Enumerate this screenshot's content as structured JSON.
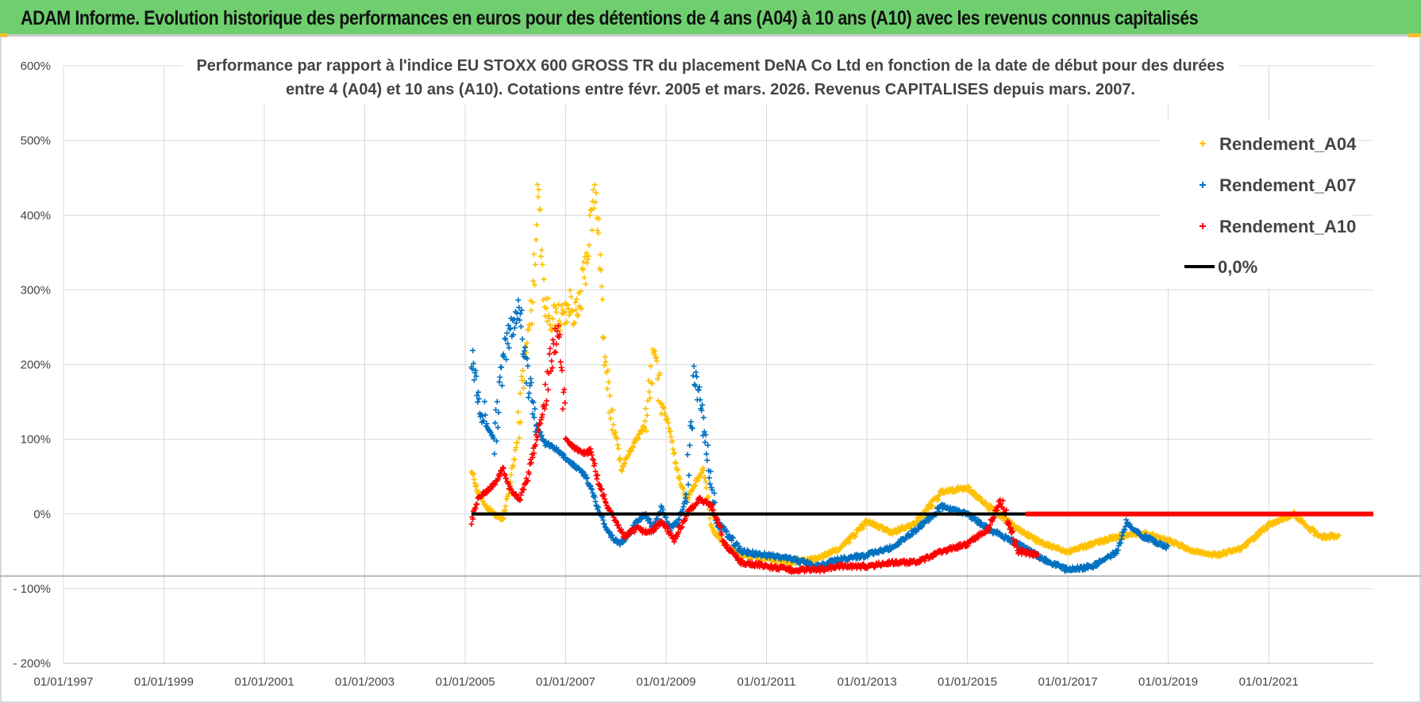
{
  "header": {
    "title": "ADAM Informe. Evolution historique des performances en euros pour des détentions de 4 ans (A04) à 10 ans (A10) avec les revenus connus capitalisés"
  },
  "chart_data": {
    "type": "scatter",
    "title_lines": [
      "Performance par rapport à l'indice EU STOXX 600 GROSS TR  du placement DeNA Co Ltd en fonction de la date de début pour des durées",
      "entre 4 (A04) et 10 ans (A10). Cotations entre févr. 2005 et mars. 2026. Revenus CAPITALISES depuis mars. 2007."
    ],
    "xlabel": "",
    "ylabel": "",
    "x_ticks": [
      "01/01/1997",
      "01/01/1999",
      "01/01/2001",
      "01/01/2003",
      "01/01/2005",
      "01/01/2007",
      "01/01/2009",
      "01/01/2011",
      "01/01/2013",
      "01/01/2015",
      "01/01/2017",
      "01/01/2019",
      "01/01/2021"
    ],
    "xlim": [
      "1997-01-01",
      "2023-02-01"
    ],
    "y_ticks": [
      "600%",
      "500%",
      "400%",
      "300%",
      "200%",
      "100%",
      "0%",
      "- 100%",
      "- 200%"
    ],
    "ylim": [
      -200,
      600
    ],
    "grid": true,
    "legend_position": "top-right",
    "series": [
      {
        "name": "Rendement_A04",
        "color": "#ffc000",
        "marker": "+",
        "points": [
          [
            "2005-02-15",
            60
          ],
          [
            "2005-04-01",
            30
          ],
          [
            "2005-06-01",
            10
          ],
          [
            "2005-08-01",
            0
          ],
          [
            "2005-10-01",
            -10
          ],
          [
            "2005-12-01",
            50
          ],
          [
            "2006-01-15",
            100
          ],
          [
            "2006-03-01",
            190
          ],
          [
            "2006-05-01",
            280
          ],
          [
            "2006-06-20",
            440
          ],
          [
            "2006-08-01",
            280
          ],
          [
            "2006-10-01",
            260
          ],
          [
            "2006-12-01",
            265
          ],
          [
            "2007-02-01",
            280
          ],
          [
            "2007-04-01",
            265
          ],
          [
            "2007-06-01",
            340
          ],
          [
            "2007-08-01",
            430
          ],
          [
            "2007-09-01",
            380
          ],
          [
            "2007-10-15",
            190
          ],
          [
            "2007-12-15",
            120
          ],
          [
            "2008-02-15",
            60
          ],
          [
            "2008-04-01",
            80
          ],
          [
            "2008-06-01",
            100
          ],
          [
            "2008-08-01",
            120
          ],
          [
            "2008-10-01",
            210
          ],
          [
            "2008-12-01",
            150
          ],
          [
            "2009-02-01",
            110
          ],
          [
            "2009-04-01",
            50
          ],
          [
            "2009-06-01",
            20
          ],
          [
            "2009-08-01",
            40
          ],
          [
            "2009-10-01",
            60
          ],
          [
            "2009-12-01",
            -20
          ],
          [
            "2010-03-01",
            -40
          ],
          [
            "2010-07-01",
            -55
          ],
          [
            "2011-01-01",
            -60
          ],
          [
            "2011-07-01",
            -65
          ],
          [
            "2012-01-01",
            -60
          ],
          [
            "2012-07-01",
            -45
          ],
          [
            "2013-01-01",
            -10
          ],
          [
            "2013-07-01",
            -25
          ],
          [
            "2014-01-01",
            -10
          ],
          [
            "2014-07-01",
            30
          ],
          [
            "2015-01-01",
            35
          ],
          [
            "2015-06-01",
            10
          ],
          [
            "2016-01-01",
            -20
          ],
          [
            "2016-07-01",
            -40
          ],
          [
            "2017-01-01",
            -50
          ],
          [
            "2017-07-01",
            -40
          ],
          [
            "2018-01-01",
            -30
          ],
          [
            "2018-07-01",
            -25
          ],
          [
            "2019-01-01",
            -35
          ],
          [
            "2019-07-01",
            -50
          ],
          [
            "2020-01-01",
            -55
          ],
          [
            "2020-07-01",
            -45
          ],
          [
            "2021-01-01",
            -15
          ],
          [
            "2021-07-01",
            0
          ],
          [
            "2022-01-01",
            -30
          ],
          [
            "2022-06-01",
            -30
          ]
        ]
      },
      {
        "name": "Rendement_A07",
        "color": "#0070c0",
        "marker": "+",
        "points": [
          [
            "2005-02-15",
            220
          ],
          [
            "2005-04-01",
            170
          ],
          [
            "2005-06-01",
            120
          ],
          [
            "2005-08-01",
            100
          ],
          [
            "2005-10-01",
            200
          ],
          [
            "2005-12-01",
            250
          ],
          [
            "2006-02-01",
            280
          ],
          [
            "2006-04-01",
            180
          ],
          [
            "2006-06-01",
            120
          ],
          [
            "2006-08-01",
            95
          ],
          [
            "2006-10-01",
            90
          ],
          [
            "2006-12-01",
            80
          ],
          [
            "2007-02-01",
            70
          ],
          [
            "2007-04-01",
            60
          ],
          [
            "2007-06-01",
            50
          ],
          [
            "2007-08-01",
            20
          ],
          [
            "2007-10-01",
            -10
          ],
          [
            "2007-12-01",
            -30
          ],
          [
            "2008-02-01",
            -40
          ],
          [
            "2008-04-01",
            -30
          ],
          [
            "2008-06-01",
            -10
          ],
          [
            "2008-08-01",
            0
          ],
          [
            "2008-10-01",
            -20
          ],
          [
            "2008-12-01",
            10
          ],
          [
            "2009-02-01",
            -20
          ],
          [
            "2009-04-01",
            -10
          ],
          [
            "2009-06-01",
            30
          ],
          [
            "2009-08-01",
            190
          ],
          [
            "2009-10-01",
            120
          ],
          [
            "2010-01-01",
            -10
          ],
          [
            "2010-07-01",
            -50
          ],
          [
            "2011-01-01",
            -55
          ],
          [
            "2011-07-01",
            -60
          ],
          [
            "2012-01-01",
            -70
          ],
          [
            "2012-07-01",
            -60
          ],
          [
            "2013-01-01",
            -55
          ],
          [
            "2013-07-01",
            -45
          ],
          [
            "2014-01-01",
            -20
          ],
          [
            "2014-07-01",
            10
          ],
          [
            "2015-01-01",
            0
          ],
          [
            "2015-06-01",
            -20
          ],
          [
            "2016-01-01",
            -40
          ],
          [
            "2016-07-01",
            -60
          ],
          [
            "2017-01-01",
            -75
          ],
          [
            "2017-07-01",
            -70
          ],
          [
            "2018-01-01",
            -50
          ],
          [
            "2018-03-01",
            -10
          ],
          [
            "2018-07-01",
            -30
          ],
          [
            "2019-01-01",
            -45
          ]
        ]
      },
      {
        "name": "Rendement_A10",
        "color": "#ff0000",
        "marker": "+",
        "points": [
          [
            "2005-02-15",
            -10
          ],
          [
            "2005-04-01",
            20
          ],
          [
            "2005-06-01",
            30
          ],
          [
            "2005-08-01",
            40
          ],
          [
            "2005-10-01",
            60
          ],
          [
            "2005-12-01",
            30
          ],
          [
            "2006-02-01",
            20
          ],
          [
            "2006-04-01",
            50
          ],
          [
            "2006-06-01",
            100
          ],
          [
            "2006-08-01",
            150
          ],
          [
            "2006-10-01",
            220
          ],
          [
            "2006-11-15",
            250
          ],
          [
            "2007-01-01",
            100
          ],
          [
            "2007-03-01",
            90
          ],
          [
            "2007-05-01",
            80
          ],
          [
            "2007-07-01",
            85
          ],
          [
            "2007-09-01",
            40
          ],
          [
            "2007-11-01",
            10
          ],
          [
            "2008-01-01",
            -10
          ],
          [
            "2008-03-01",
            -30
          ],
          [
            "2008-06-01",
            -20
          ],
          [
            "2008-09-01",
            -25
          ],
          [
            "2008-12-01",
            -10
          ],
          [
            "2009-03-01",
            -35
          ],
          [
            "2009-06-01",
            0
          ],
          [
            "2009-09-01",
            20
          ],
          [
            "2009-12-01",
            10
          ],
          [
            "2010-03-01",
            -40
          ],
          [
            "2010-07-01",
            -65
          ],
          [
            "2011-01-01",
            -70
          ],
          [
            "2011-07-01",
            -75
          ],
          [
            "2012-01-01",
            -75
          ],
          [
            "2012-07-01",
            -70
          ],
          [
            "2013-01-01",
            -70
          ],
          [
            "2013-07-01",
            -65
          ],
          [
            "2014-01-01",
            -65
          ],
          [
            "2014-07-01",
            -50
          ],
          [
            "2015-01-01",
            -40
          ],
          [
            "2015-06-01",
            -20
          ],
          [
            "2015-09-01",
            20
          ],
          [
            "2016-01-01",
            -50
          ],
          [
            "2016-06-01",
            -55
          ]
        ]
      }
    ],
    "reference_line": {
      "name": "0,0%",
      "color": "#000000",
      "y": 0,
      "x_range": [
        "2005-02-15",
        "2016-03-01"
      ],
      "continued_color": "#ff0000",
      "continued_x_range": [
        "2016-03-01",
        "2023-02-01"
      ]
    }
  }
}
